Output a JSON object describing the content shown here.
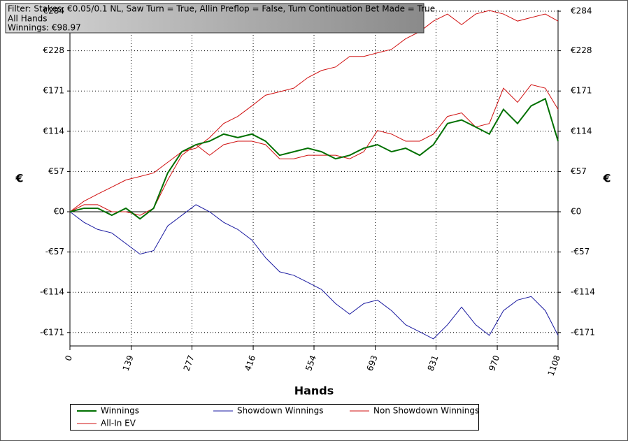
{
  "filter_box": {
    "lines": [
      "Filter: Stakes: €0.05/0.1 NL, Saw Turn = True, Allin Preflop = False, Turn Continuation Bet Made = True",
      "All Hands",
      "Winnings: €98.97"
    ]
  },
  "chart_data": {
    "type": "line",
    "x_label": "Hands",
    "y_label": "€",
    "y2_label": "€",
    "x": [
      0,
      32,
      63,
      95,
      127,
      159,
      190,
      222,
      254,
      286,
      317,
      349,
      381,
      413,
      444,
      476,
      508,
      540,
      571,
      603,
      635,
      667,
      698,
      730,
      762,
      794,
      825,
      857,
      889,
      921,
      952,
      984,
      1016,
      1047,
      1079,
      1108
    ],
    "series": [
      {
        "name": "Winnings",
        "color": "#007000",
        "values": [
          0,
          5,
          5,
          -5,
          5,
          -10,
          5,
          55,
          85,
          95,
          100,
          110,
          105,
          110,
          100,
          80,
          85,
          90,
          85,
          75,
          80,
          90,
          95,
          85,
          90,
          80,
          95,
          125,
          130,
          120,
          110,
          145,
          125,
          150,
          160,
          100
        ]
      },
      {
        "name": "Showdown Winnings",
        "color": "#1a1aa0",
        "values": [
          0,
          -15,
          -25,
          -30,
          -45,
          -60,
          -55,
          -20,
          -5,
          10,
          0,
          -15,
          -25,
          -40,
          -65,
          -85,
          -90,
          -100,
          -110,
          -130,
          -145,
          -130,
          -125,
          -140,
          -160,
          -170,
          -180,
          -160,
          -135,
          -160,
          -175,
          -140,
          -125,
          -120,
          -140,
          -175
        ]
      },
      {
        "name": "Non Showdown Winnings",
        "color": "#d01010",
        "values": [
          0,
          15,
          25,
          35,
          45,
          50,
          55,
          70,
          85,
          90,
          105,
          125,
          135,
          150,
          165,
          170,
          175,
          190,
          200,
          205,
          220,
          220,
          225,
          230,
          245,
          255,
          270,
          280,
          265,
          280,
          285,
          280,
          270,
          275,
          280,
          270
        ]
      },
      {
        "name": "All-In EV",
        "color": "#d01010",
        "values": [
          0,
          10,
          10,
          0,
          0,
          -5,
          5,
          45,
          80,
          95,
          80,
          95,
          100,
          100,
          95,
          75,
          75,
          80,
          80,
          80,
          75,
          85,
          115,
          110,
          100,
          100,
          110,
          135,
          140,
          120,
          125,
          175,
          155,
          180,
          175,
          145
        ]
      }
    ],
    "xlim": [
      0,
      1108
    ],
    "xticks": [
      0,
      139,
      277,
      416,
      554,
      693,
      831,
      970,
      1108
    ],
    "ylim": [
      -190,
      286
    ],
    "yticks": [
      {
        "value": -171,
        "label": "-€171"
      },
      {
        "value": -114,
        "label": "-€114"
      },
      {
        "value": -57,
        "label": "-€57"
      },
      {
        "value": 0,
        "label": "€0"
      },
      {
        "value": 57,
        "label": "€57"
      },
      {
        "value": 114,
        "label": "€114"
      },
      {
        "value": 171,
        "label": "€171"
      },
      {
        "value": 228,
        "label": "€228"
      },
      {
        "value": 284,
        "label": "€284"
      }
    ],
    "grid": true
  }
}
